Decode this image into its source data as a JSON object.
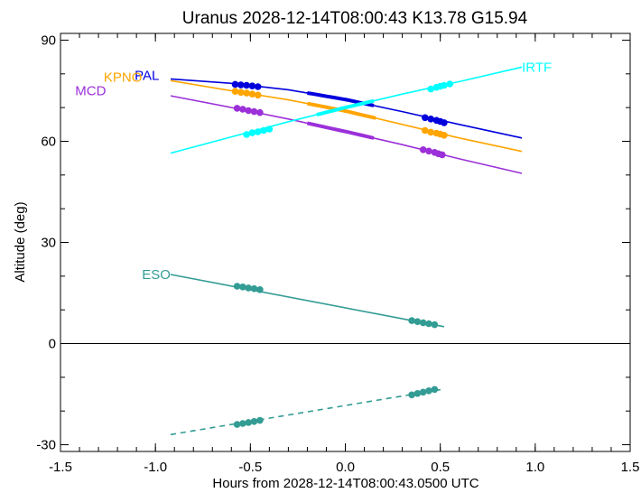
{
  "chart_data": {
    "type": "line",
    "title": "Uranus 2028-12-14T08:00:43  K13.78  G15.94",
    "xlabel": "Hours from 2028-12-14T08:00:43.0500 UTC",
    "ylabel": "Altitude (deg)",
    "xlim": [
      -1.5,
      1.5
    ],
    "ylim": [
      -32,
      92
    ],
    "xticks": [
      -1.5,
      -1.0,
      -0.5,
      0.0,
      0.5,
      1.0,
      1.5
    ],
    "xtick_labels": [
      "-1.5",
      "-1.0",
      "-0.5",
      "0.0",
      "0.5",
      "1.0",
      "1.5"
    ],
    "yticks": [
      -30,
      0,
      30,
      60,
      90
    ],
    "ytick_labels": [
      "-30",
      "0",
      "30",
      "60",
      "90"
    ],
    "zero_line": true,
    "grid": false,
    "series": [
      {
        "name": "PAL",
        "color": "#0000dd",
        "label_pos": [
          -0.98,
          79.5
        ],
        "label_anchor": "end",
        "x": [
          -0.92,
          -0.6,
          -0.3,
          0.0,
          0.3,
          0.6,
          0.93
        ],
        "y": [
          78.5,
          77.2,
          75.3,
          72.4,
          68.8,
          65.0,
          61.0
        ],
        "thick": [
          [
            -0.2,
            0.15
          ]
        ],
        "dots": [
          [
            -0.58,
            76.9
          ],
          [
            -0.55,
            76.7
          ],
          [
            -0.52,
            76.6
          ],
          [
            -0.49,
            76.4
          ],
          [
            -0.46,
            76.2
          ],
          [
            0.42,
            67.0
          ],
          [
            0.45,
            66.6
          ],
          [
            0.48,
            66.2
          ],
          [
            0.5,
            65.9
          ],
          [
            0.52,
            65.5
          ]
        ]
      },
      {
        "name": "KPNO",
        "color": "#ffa500",
        "label_pos": [
          -1.07,
          79.0
        ],
        "label_anchor": "end",
        "x": [
          -0.92,
          -0.6,
          -0.3,
          0.0,
          0.3,
          0.6,
          0.93
        ],
        "y": [
          78.0,
          75.0,
          72.3,
          69.0,
          65.0,
          61.0,
          57.0
        ],
        "thick": [
          [
            -0.2,
            0.16
          ]
        ],
        "dots": [
          [
            -0.58,
            74.8
          ],
          [
            -0.55,
            74.5
          ],
          [
            -0.52,
            74.3
          ],
          [
            -0.49,
            74.0
          ],
          [
            -0.46,
            73.7
          ],
          [
            0.42,
            63.2
          ],
          [
            0.45,
            62.7
          ],
          [
            0.48,
            62.4
          ],
          [
            0.5,
            62.1
          ],
          [
            0.52,
            61.8
          ]
        ]
      },
      {
        "name": "MCD",
        "color": "#9b30d9",
        "label_pos": [
          -1.26,
          75.0
        ],
        "label_anchor": "end",
        "x": [
          -0.92,
          -0.6,
          -0.3,
          0.0,
          0.3,
          0.6,
          0.93
        ],
        "y": [
          73.5,
          70.0,
          66.6,
          62.9,
          59.0,
          54.8,
          50.5
        ],
        "thick": [
          [
            -0.2,
            0.15
          ]
        ],
        "dots": [
          [
            -0.57,
            69.8
          ],
          [
            -0.54,
            69.5
          ],
          [
            -0.51,
            69.1
          ],
          [
            -0.48,
            68.8
          ],
          [
            -0.45,
            68.5
          ],
          [
            0.41,
            57.5
          ],
          [
            0.44,
            57.1
          ],
          [
            0.47,
            56.7
          ],
          [
            0.49,
            56.3
          ],
          [
            0.51,
            56.0
          ]
        ]
      },
      {
        "name": "IRTF",
        "color": "#00ffff",
        "label_pos": [
          0.93,
          82.0
        ],
        "label_anchor": "start",
        "x": [
          -0.92,
          -0.6,
          -0.3,
          0.0,
          0.3,
          0.6,
          0.93
        ],
        "y": [
          56.5,
          61.3,
          65.8,
          70.0,
          74.0,
          77.7,
          82.0
        ],
        "thick": [
          [
            -0.15,
            0.15
          ]
        ],
        "dots": [
          [
            -0.52,
            62.0
          ],
          [
            -0.49,
            62.5
          ],
          [
            -0.46,
            62.8
          ],
          [
            -0.43,
            63.2
          ],
          [
            -0.4,
            63.6
          ],
          [
            0.45,
            75.5
          ],
          [
            0.48,
            76.0
          ],
          [
            0.5,
            76.3
          ],
          [
            0.52,
            76.6
          ],
          [
            0.55,
            77.0
          ]
        ]
      },
      {
        "name": "ESO",
        "color": "#339c94",
        "label_pos": [
          -0.92,
          20.5
        ],
        "label_anchor": "end",
        "x": [
          -0.92,
          0.52
        ],
        "y": [
          20.5,
          5.0
        ],
        "thick": [],
        "dots": [
          [
            -0.57,
            17.0
          ],
          [
            -0.54,
            16.8
          ],
          [
            -0.51,
            16.5
          ],
          [
            -0.48,
            16.3
          ],
          [
            -0.45,
            16.0
          ],
          [
            0.35,
            6.8
          ],
          [
            0.38,
            6.5
          ],
          [
            0.41,
            6.2
          ],
          [
            0.44,
            5.9
          ],
          [
            0.47,
            5.6
          ]
        ]
      },
      {
        "name": "",
        "color": "#339c94",
        "dashed": true,
        "x": [
          -0.92,
          0.52
        ],
        "y": [
          -27.0,
          -13.5
        ],
        "thick": [],
        "dots": [
          [
            -0.57,
            -24.0
          ],
          [
            -0.54,
            -23.7
          ],
          [
            -0.51,
            -23.4
          ],
          [
            -0.48,
            -23.1
          ],
          [
            -0.45,
            -22.8
          ],
          [
            0.35,
            -15.2
          ],
          [
            0.38,
            -14.8
          ],
          [
            0.41,
            -14.4
          ],
          [
            0.44,
            -14.0
          ],
          [
            0.47,
            -13.6
          ]
        ]
      }
    ]
  }
}
